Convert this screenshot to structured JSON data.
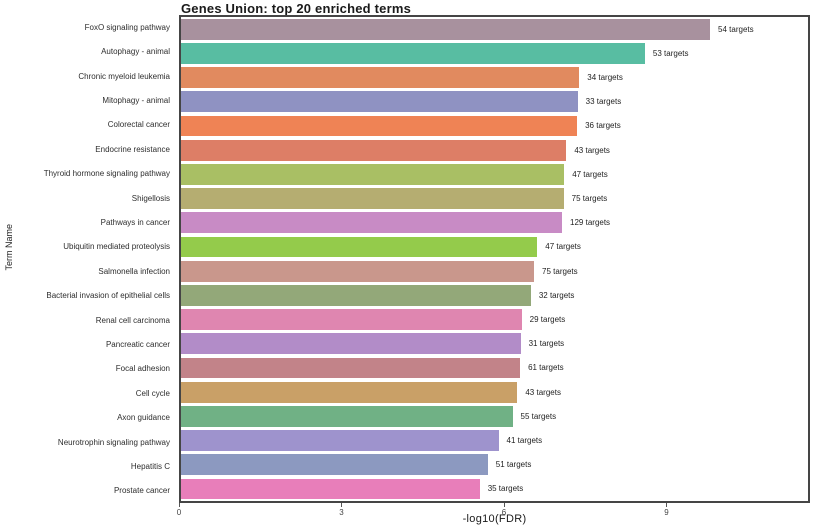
{
  "title": "Genes Union: top 20 enriched terms",
  "chart_data": {
    "type": "bar",
    "orientation": "horizontal",
    "title": "Genes Union: top 20 enriched terms",
    "xlabel": "-log10(FDR)",
    "ylabel": "Term Name",
    "xlim": [
      0,
      11.65
    ],
    "xticks": [
      0,
      3,
      6,
      9
    ],
    "grid": false,
    "legend_position": "none",
    "bars": [
      {
        "term": "FoxO signaling pathway",
        "value": 9.83,
        "targets": 54,
        "label": "54 targets",
        "color": "#a8919e"
      },
      {
        "term": "Autophagy - animal",
        "value": 8.62,
        "targets": 53,
        "label": "53 targets",
        "color": "#58bda2"
      },
      {
        "term": "Chronic myeloid leukemia",
        "value": 7.4,
        "targets": 34,
        "label": "34 targets",
        "color": "#e18a5f"
      },
      {
        "term": "Mitophagy - animal",
        "value": 7.37,
        "targets": 33,
        "label": "33 targets",
        "color": "#8f92c2"
      },
      {
        "term": "Colorectal cancer",
        "value": 7.36,
        "targets": 36,
        "label": "36 targets",
        "color": "#ef8355"
      },
      {
        "term": "Endocrine resistance",
        "value": 7.16,
        "targets": 43,
        "label": "43 targets",
        "color": "#dd7e66"
      },
      {
        "term": "Thyroid hormone signaling pathway",
        "value": 7.12,
        "targets": 47,
        "label": "47 targets",
        "color": "#a9bf64"
      },
      {
        "term": "Shigellosis",
        "value": 7.11,
        "targets": 75,
        "label": "75 targets",
        "color": "#b5ad71"
      },
      {
        "term": "Pathways in cancer",
        "value": 7.08,
        "targets": 129,
        "label": "129 targets",
        "color": "#c88bc5"
      },
      {
        "term": "Ubiquitin mediated proteolysis",
        "value": 6.62,
        "targets": 47,
        "label": "47 targets",
        "color": "#94cb4b"
      },
      {
        "term": "Salmonella infection",
        "value": 6.56,
        "targets": 75,
        "label": "75 targets",
        "color": "#c9978c"
      },
      {
        "term": "Bacterial invasion of epithelial cells",
        "value": 6.5,
        "targets": 32,
        "label": "32 targets",
        "color": "#93a879"
      },
      {
        "term": "Renal cell carcinoma",
        "value": 6.33,
        "targets": 29,
        "label": "29 targets",
        "color": "#df86b0"
      },
      {
        "term": "Pancreatic cancer",
        "value": 6.31,
        "targets": 31,
        "label": "31 targets",
        "color": "#b28cc8"
      },
      {
        "term": "Focal adhesion",
        "value": 6.3,
        "targets": 61,
        "label": "61 targets",
        "color": "#c28389"
      },
      {
        "term": "Cell cycle",
        "value": 6.25,
        "targets": 43,
        "label": "43 targets",
        "color": "#c9a067"
      },
      {
        "term": "Axon guidance",
        "value": 6.16,
        "targets": 55,
        "label": "55 targets",
        "color": "#70b185"
      },
      {
        "term": "Neurotrophin signaling pathway",
        "value": 5.9,
        "targets": 41,
        "label": "41 targets",
        "color": "#9e93cd"
      },
      {
        "term": "Hepatitis C",
        "value": 5.7,
        "targets": 51,
        "label": "51 targets",
        "color": "#8c99c0"
      },
      {
        "term": "Prostate cancer",
        "value": 5.55,
        "targets": 35,
        "label": "35 targets",
        "color": "#e87eba"
      }
    ]
  }
}
